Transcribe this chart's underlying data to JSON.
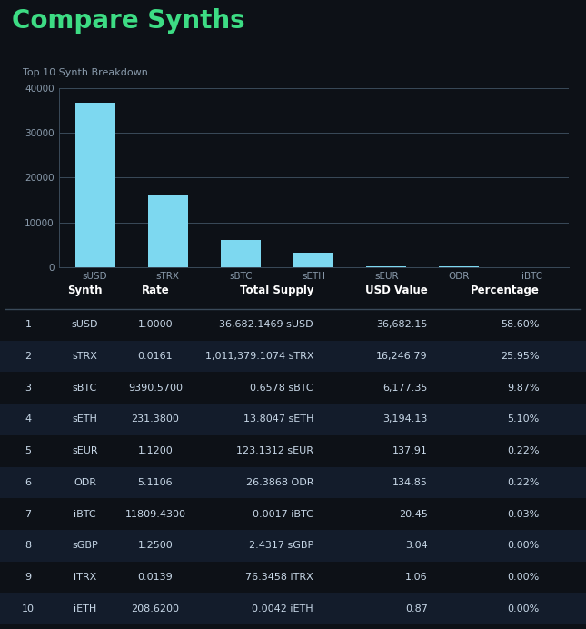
{
  "title": "Compare Synths",
  "subtitle": "Top 10 Synth Breakdown",
  "bg_color": "#0d1117",
  "title_color": "#3ddc84",
  "subtitle_color": "#8899aa",
  "bar_color": "#7dd8f0",
  "bar_categories": [
    "sUSD",
    "sTRX",
    "sBTC",
    "sETH",
    "sEUR",
    "ODR",
    "iBTC"
  ],
  "bar_values": [
    36682.15,
    16246.79,
    6177.35,
    3194.13,
    137.91,
    134.85,
    20.45
  ],
  "yticks": [
    0,
    10000,
    20000,
    30000,
    40000
  ],
  "grid_color": "#3a4a5a",
  "tick_color": "#8899aa",
  "table_header": [
    "Synth",
    "Rate",
    "Total Supply",
    "USD Value",
    "Percentage"
  ],
  "table_rows": [
    [
      "1",
      "sUSD",
      "1.0000",
      "36,682.1469 sUSD",
      "36,682.15",
      "58.60%"
    ],
    [
      "2",
      "sTRX",
      "0.0161",
      "1,011,379.1074 sTRX",
      "16,246.79",
      "25.95%"
    ],
    [
      "3",
      "sBTC",
      "9390.5700",
      "0.6578 sBTC",
      "6,177.35",
      "9.87%"
    ],
    [
      "4",
      "sETH",
      "231.3800",
      "13.8047 sETH",
      "3,194.13",
      "5.10%"
    ],
    [
      "5",
      "sEUR",
      "1.1200",
      "123.1312 sEUR",
      "137.91",
      "0.22%"
    ],
    [
      "6",
      "ODR",
      "5.1106",
      "26.3868 ODR",
      "134.85",
      "0.22%"
    ],
    [
      "7",
      "iBTC",
      "11809.4300",
      "0.0017 iBTC",
      "20.45",
      "0.03%"
    ],
    [
      "8",
      "sGBP",
      "1.2500",
      "2.4317 sGBP",
      "3.04",
      "0.00%"
    ],
    [
      "9",
      "iTRX",
      "0.0139",
      "76.3458 iTRX",
      "1.06",
      "0.00%"
    ],
    [
      "10",
      "iETH",
      "208.6200",
      "0.0042 iETH",
      "0.87",
      "0.00%"
    ]
  ],
  "row_bg_even": "#0d1117",
  "row_bg_odd": "#131c2b",
  "header_color": "#ffffff",
  "cell_color": "#c8d8e8",
  "divider_color": "#3a4a5a"
}
